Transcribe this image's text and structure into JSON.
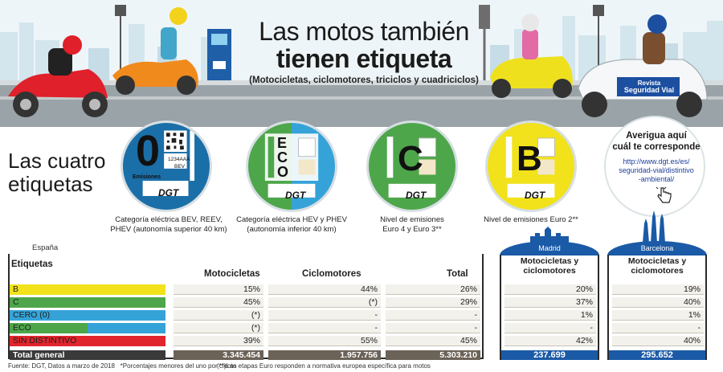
{
  "title": {
    "line1": "Las motos también",
    "line2": "tienen etiqueta",
    "subtitle": "(Motocicletas, ciclomotores, triciclos y cuadriciclos)"
  },
  "scene": {
    "sign_line1": "Revista",
    "sign_line2": "Seguridad Vial"
  },
  "section_title_1": "Las cuatro",
  "section_title_2": "etiquetas",
  "badges": [
    {
      "letter": "0",
      "caption": "Emisiones",
      "plate": "1234AAA",
      "plate_sub": "BEV",
      "brand": "DGT",
      "color": "#1b6fa8",
      "label_1": "Categoría eléctrica BEV, REEV,",
      "label_2": "PHEV (autonomía superior 40 km)"
    },
    {
      "letter": "ECO",
      "brand": "DGT",
      "color": "#4ea64a",
      "color2": "#35a3d8",
      "label_1": "Categoría eléctrica HEV y PHEV",
      "label_2": "(autonomía inferior 40 km)"
    },
    {
      "letter": "C",
      "brand": "DGT",
      "color": "#4ea64a",
      "label_1": "Nivel de emisiones",
      "label_2": "Euro 4 y Euro 3**"
    },
    {
      "letter": "B",
      "brand": "DGT",
      "color": "#f1e21b",
      "label_1": "Nivel de emisiones Euro 2**",
      "label_2": ""
    }
  ],
  "info": {
    "line1": "Averigua aquí",
    "line2": "cuál te corresponde",
    "url_1": "http://www.dgt.es/es/",
    "url_2": "seguridad-vial/distintivo",
    "url_3": "-ambiental/"
  },
  "spain": {
    "label": "España",
    "headers": [
      "Etiquetas",
      "Motocicletas",
      "Ciclomotores",
      "Total"
    ],
    "rows": [
      {
        "label": "B",
        "color": "#f1e21b",
        "moto": "15%",
        "ciclo": "44%",
        "total": "26%"
      },
      {
        "label": "C",
        "color": "#4ea64a",
        "moto": "45%",
        "ciclo": "(*)",
        "total": "29%"
      },
      {
        "label": "CERO (0)",
        "color": "#35a3d8",
        "moto": "(*)",
        "ciclo": "-",
        "total": "-"
      },
      {
        "label": "ECO",
        "color": "#4ea64a",
        "color2": "#35a3d8",
        "moto": "(*)",
        "ciclo": "-",
        "total": "-"
      },
      {
        "label": "SIN DISTINTIVO",
        "color": "#e2242c",
        "moto": "39%",
        "ciclo": "55%",
        "total": "45%"
      }
    ],
    "total": {
      "label": "Total general",
      "moto": "3.345.454",
      "ciclo": "1.957.756",
      "total": "5.303.210"
    }
  },
  "cities": [
    {
      "name": "Madrid",
      "header_1": "Motocicletas y",
      "header_2": "ciclomotores",
      "values": [
        "20%",
        "37%",
        "1%",
        "-",
        "42%"
      ],
      "total": "237.699"
    },
    {
      "name": "Barcelona",
      "header_1": "Motocicletas y",
      "header_2": "ciclomotores",
      "values": [
        "19%",
        "40%",
        "1%",
        "-",
        "40%"
      ],
      "total": "295.652"
    }
  ],
  "footnotes": {
    "source": "Fuente: DGT, Datos a marzo de 2018",
    "note1": "*Porcentajes menores del uno por ciento",
    "note2": "(**)Las etapas Euro responden a normativa europea específica para motos"
  }
}
